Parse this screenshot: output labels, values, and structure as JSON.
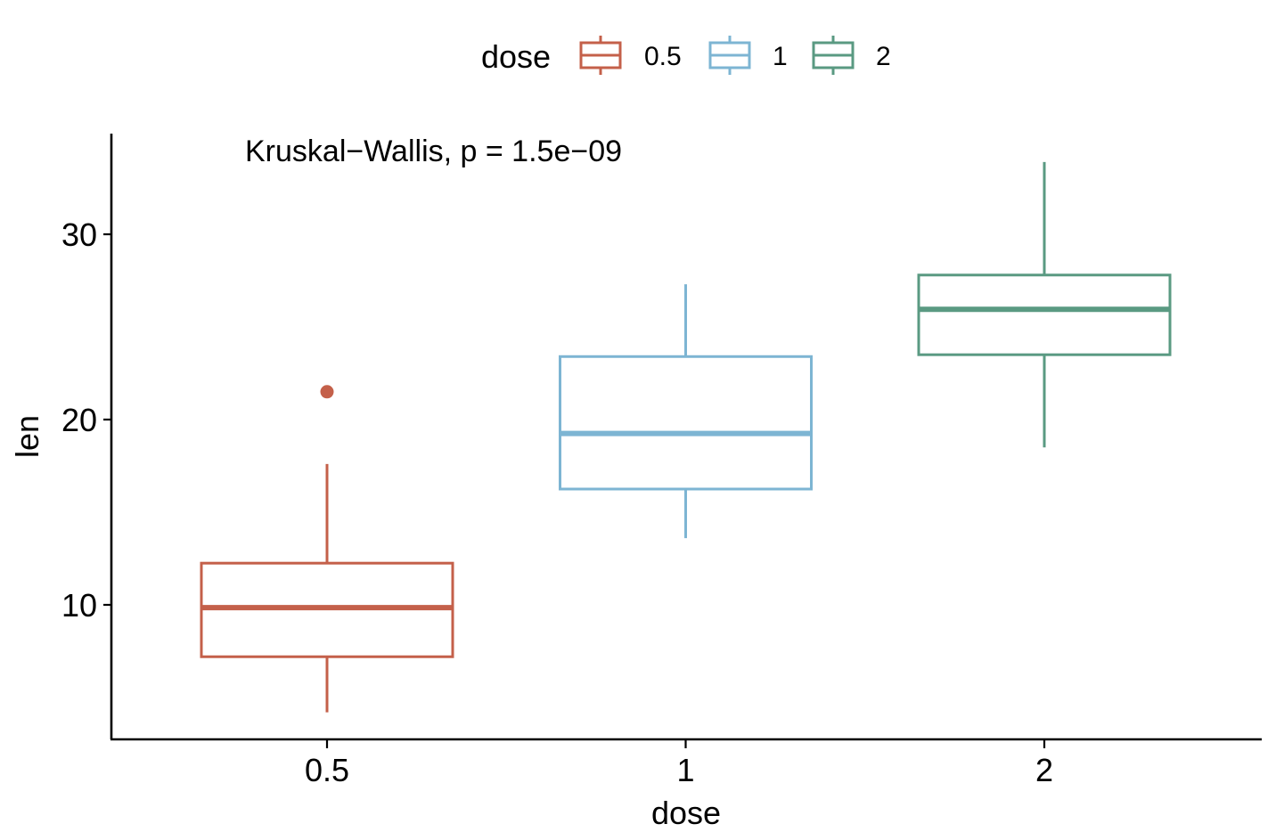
{
  "chart_data": {
    "type": "boxplot",
    "title": "",
    "xlabel": "dose",
    "ylabel": "len",
    "categories": [
      "0.5",
      "1",
      "2"
    ],
    "ylim": [
      3,
      35
    ],
    "yticks": [
      "10",
      "20",
      "30"
    ],
    "ytick_values": [
      10,
      20,
      30
    ],
    "grid": false,
    "legend": {
      "title": "dose",
      "position": "top",
      "entries": [
        "0.5",
        "1",
        "2"
      ]
    },
    "annotation": "Kruskal−Wallis, p = 1.5e−09",
    "series": [
      {
        "name": "0.5",
        "color": "#c4604a",
        "min": 4.2,
        "q1": 7.2,
        "median": 9.85,
        "q3": 12.25,
        "max": 17.6,
        "outliers": [
          21.5
        ]
      },
      {
        "name": "1",
        "color": "#7db5d3",
        "min": 13.6,
        "q1": 16.25,
        "median": 19.25,
        "q3": 23.4,
        "max": 27.3,
        "outliers": []
      },
      {
        "name": "2",
        "color": "#5a9a82",
        "min": 18.5,
        "q1": 23.5,
        "median": 25.95,
        "q3": 27.8,
        "max": 33.9,
        "outliers": []
      }
    ]
  }
}
